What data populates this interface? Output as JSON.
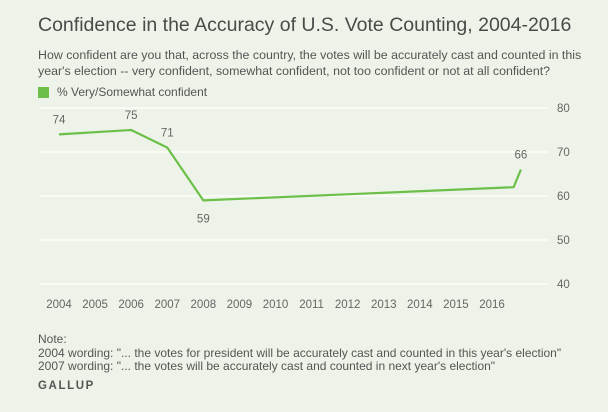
{
  "title": "Confidence in the Accuracy of U.S. Vote Counting, 2004-2016",
  "subtitle": "How confident are you that, across the country, the votes will be accurately cast and counted in this year's election -- very confident, somewhat confident, not too confident or not at all confident?",
  "note": {
    "heading": "Note:",
    "lines": [
      "2004 wording: \"... the votes for president will be accurately cast and counted in this year's election\"",
      "2007 wording: \"... the votes will be accurately cast and counted in next year's election\""
    ]
  },
  "brand": "GALLUP",
  "colors": {
    "line": "#6cc04a",
    "grid": "#ffffff",
    "background": "#edf3e8"
  },
  "chart_data": {
    "type": "line",
    "series": [
      {
        "name": "% Very/Somewhat confident",
        "x": [
          2004.0,
          2006.0,
          2007.0,
          2008.0,
          2016.6,
          2016.8
        ],
        "values": [
          74,
          75,
          71,
          59,
          62,
          66
        ],
        "labels": [
          "74",
          "75",
          "71",
          "59",
          "",
          "66"
        ],
        "label_pos": [
          "above",
          "above",
          "above",
          "below",
          "none",
          "above"
        ]
      }
    ],
    "x_ticks": [
      "2004",
      "2005",
      "2006",
      "2007",
      "2008",
      "2009",
      "2010",
      "2011",
      "2012",
      "2013",
      "2014",
      "2015",
      "2016"
    ],
    "xlim": [
      2004,
      2017
    ],
    "y_ticks": [
      "80",
      "70",
      "60",
      "50",
      "40"
    ],
    "ylim": [
      40,
      80
    ],
    "grid": true,
    "legend_position": "top-left"
  }
}
